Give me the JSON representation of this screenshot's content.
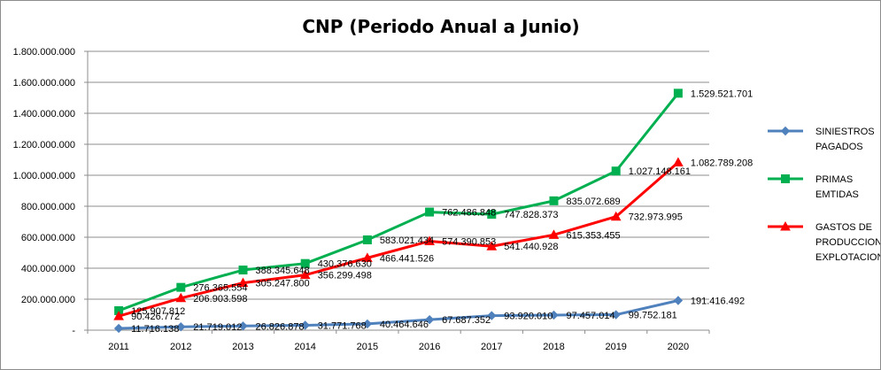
{
  "chart_data": {
    "type": "line",
    "title": "CNP (Periodo Anual a Junio)",
    "xlabel": "",
    "ylabel": "",
    "categories": [
      "2011",
      "2012",
      "2013",
      "2014",
      "2015",
      "2016",
      "2017",
      "2018",
      "2019",
      "2020"
    ],
    "ylim": [
      0,
      1800000000
    ],
    "y_ticks": [
      0,
      200000000,
      400000000,
      600000000,
      800000000,
      1000000000,
      1200000000,
      1400000000,
      1600000000,
      1800000000
    ],
    "y_tick_labels": [
      "-",
      "200.000.000",
      "400.000.000",
      "600.000.000",
      "800.000.000",
      "1.000.000.000",
      "1.200.000.000",
      "1.400.000.000",
      "1.600.000.000",
      "1.800.000.000"
    ],
    "grid": "horizontal",
    "legend_position": "right",
    "series": [
      {
        "name": "SINIESTROS PAGADOS",
        "legend_lines": [
          "SINIESTROS",
          "PAGADOS"
        ],
        "color": "#4f81bd",
        "marker": "diamond",
        "values": [
          11716138,
          21719012,
          26826878,
          31771768,
          40464646,
          67687352,
          93920010,
          97457014,
          99752181,
          191416492
        ],
        "labels": [
          "11.716.138",
          "21.719.012",
          "26.826.878",
          "31.771.768",
          "40.464.646",
          "67.687.352",
          "93.920.010",
          "97.457.014",
          "99.752.181",
          "191.416.492"
        ]
      },
      {
        "name": "PRIMAS EMTIDAS",
        "legend_lines": [
          "PRIMAS",
          "EMTIDAS"
        ],
        "color": "#00b050",
        "marker": "square",
        "values": [
          125907812,
          276365554,
          388345648,
          430376630,
          583021434,
          762486848,
          747828373,
          835072689,
          1027148161,
          1529521701
        ],
        "labels": [
          "125.907.812",
          "276.365.554",
          "388.345.648",
          "430.376.630",
          "583.021.434",
          "762.486.848",
          "747.828.373",
          "835.072.689",
          "1.027.148.161",
          "1.529.521.701"
        ]
      },
      {
        "name": "GASTOS DE PRODUCCION Y EXPLOTACION",
        "legend_lines": [
          "GASTOS DE",
          "PRODUCCION Y",
          "EXPLOTACION"
        ],
        "color": "#ff0000",
        "marker": "triangle",
        "values": [
          90426772,
          206903598,
          305247800,
          356299498,
          466441526,
          574390853,
          541440928,
          615353455,
          732973995,
          1082789208
        ],
        "labels": [
          "90.426.772",
          "206.903.598",
          "305.247.800",
          "356.299.498",
          "466.441.526",
          "574.390.853",
          "541.440.928",
          "615.353.455",
          "732.973.995",
          "1.082.789.208"
        ]
      }
    ]
  }
}
